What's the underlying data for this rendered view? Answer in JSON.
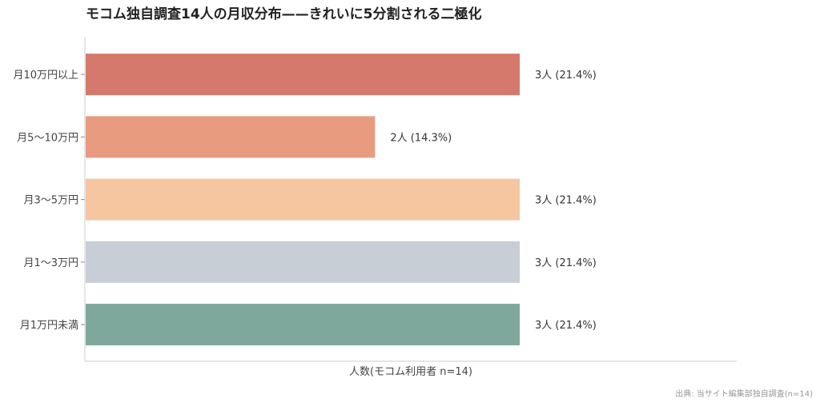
{
  "chart_data": {
    "type": "bar",
    "orientation": "horizontal",
    "title": "モコム独自調査14人の月収分布——きれいに5分割される二極化",
    "xlabel": "人数(モコム利用者 n=14)",
    "ylabel": "",
    "xlim": [
      0,
      4.5
    ],
    "grid": false,
    "categories": [
      "月10万円以上",
      "月5〜10万円",
      "月3〜5万円",
      "月1〜3万円",
      "月1万円未満"
    ],
    "values": [
      3,
      2,
      3,
      3,
      3
    ],
    "value_labels": [
      "3人 (21.4%)",
      "2人 (14.3%)",
      "3人 (21.4%)",
      "3人 (21.4%)",
      "3人 (21.4%)"
    ],
    "colors": [
      "#D4796C",
      "#E89B7E",
      "#F5C6A0",
      "#C8CED6",
      "#7FA89C"
    ]
  },
  "source_note": "出典: 当サイト編集部独自調査(n=14)"
}
